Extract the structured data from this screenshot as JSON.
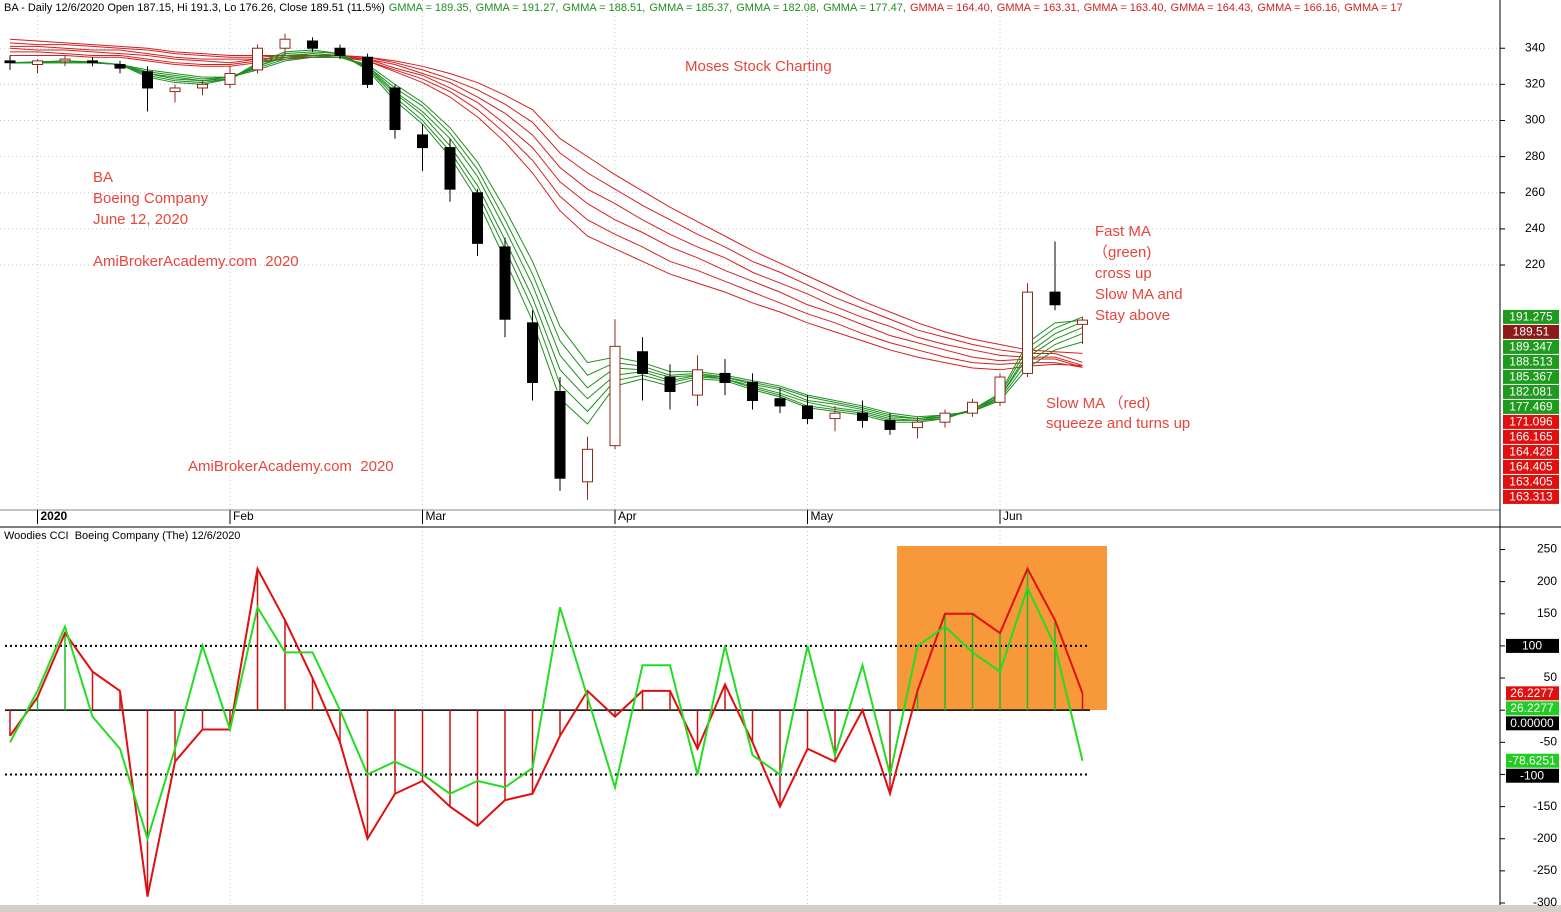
{
  "chart_data": [
    {
      "type": "candlestick",
      "header": "BA - Daily 12/6/2020 Open 187.15, Hi 191.3, Lo 176.26, Close 189.51 (11.5%)",
      "categories": [
        null,
        "2020",
        null,
        null,
        null,
        null,
        null,
        null,
        "Feb",
        null,
        null,
        null,
        null,
        null,
        null,
        "Mar",
        null,
        null,
        null,
        null,
        null,
        null,
        "Apr",
        null,
        null,
        null,
        null,
        null,
        null,
        "May",
        null,
        null,
        null,
        null,
        null,
        null,
        "Jun",
        null,
        null,
        null
      ],
      "open": [
        333,
        331,
        333,
        333,
        331,
        327,
        316,
        318,
        320,
        328,
        340,
        344,
        340,
        335,
        318,
        292,
        285,
        260,
        230,
        188,
        150,
        100,
        120,
        172,
        158,
        148,
        160,
        155,
        146,
        142,
        135,
        138,
        134,
        130,
        133,
        138,
        144,
        160,
        205,
        187.15
      ],
      "high": [
        336,
        334,
        336,
        335,
        333,
        330,
        320,
        322,
        330,
        342,
        348,
        346,
        342,
        337,
        320,
        298,
        290,
        262,
        235,
        195,
        158,
        125,
        190,
        180,
        165,
        170,
        168,
        160,
        152,
        148,
        142,
        145,
        138,
        136,
        140,
        146,
        160,
        210,
        233,
        191.3
      ],
      "low": [
        328,
        326,
        330,
        330,
        326,
        305,
        310,
        314,
        318,
        326,
        336,
        338,
        334,
        318,
        290,
        272,
        255,
        225,
        180,
        145,
        95,
        90,
        118,
        145,
        140,
        142,
        148,
        140,
        138,
        132,
        128,
        130,
        126,
        124,
        130,
        136,
        142,
        158,
        195,
        176.26
      ],
      "close": [
        332,
        333,
        334,
        332,
        329,
        318,
        318,
        320,
        326,
        340,
        345,
        340,
        336,
        320,
        295,
        285,
        262,
        232,
        190,
        155,
        102,
        118,
        175,
        160,
        150,
        162,
        155,
        145,
        142,
        135,
        138,
        134,
        129,
        133,
        138,
        144,
        158,
        205,
        198,
        189.51
      ],
      "up_color": "#ffffff",
      "up_edge": "#8b2b1e",
      "down_color": "#000000",
      "series": [
        {
          "legend": "GMMA = 189.35,",
          "color": "#1f8f1f",
          "values": [
            332,
            332.5,
            333,
            332.5,
            331,
            324,
            321,
            320,
            323,
            332,
            338,
            339,
            337,
            328,
            311,
            298,
            280,
            256,
            223,
            189,
            146,
            132,
            153,
            157,
            153,
            157,
            156,
            151,
            147,
            141,
            139,
            137,
            133,
            133,
            135,
            140,
            149,
            177,
            188,
            189.35
          ]
        },
        {
          "legend": "GMMA = 191.27,",
          "color": "#1f8f1f",
          "values": [
            332,
            332,
            333,
            332,
            331,
            325,
            322,
            321,
            323,
            331,
            337,
            338,
            337,
            329,
            313,
            300,
            283,
            260,
            229,
            196,
            154,
            139,
            156,
            159,
            155,
            158,
            157,
            152,
            148,
            142,
            140,
            138,
            134,
            134,
            135,
            140,
            148,
            174,
            185,
            191.27
          ]
        },
        {
          "legend": "GMMA = 188.51,",
          "color": "#1f8f1f",
          "values": [
            332,
            332,
            333,
            332,
            331,
            326,
            323,
            322,
            323,
            330,
            336,
            337,
            336,
            329,
            315,
            303,
            286,
            264,
            234,
            202,
            162,
            146,
            159,
            161,
            156,
            159,
            157,
            153,
            149,
            144,
            141,
            139,
            135,
            134,
            136,
            140,
            147,
            171,
            182,
            188.51
          ]
        },
        {
          "legend": "GMMA = 185.37,",
          "color": "#1f8f1f",
          "values": [
            332,
            332,
            332,
            332,
            331,
            326,
            324,
            322,
            324,
            330,
            335,
            337,
            336,
            330,
            316,
            305,
            290,
            269,
            240,
            209,
            170,
            152,
            163,
            162,
            158,
            159,
            158,
            154,
            151,
            145,
            143,
            140,
            136,
            135,
            136,
            139,
            147,
            169,
            179,
            185.37
          ]
        },
        {
          "legend": "GMMA = 182.08,",
          "color": "#1f8f1f",
          "values": [
            332,
            332,
            332,
            332,
            331,
            327,
            325,
            323,
            324,
            329,
            334,
            336,
            335,
            330,
            318,
            308,
            293,
            273,
            245,
            215,
            178,
            159,
            166,
            164,
            159,
            160,
            158,
            155,
            152,
            147,
            144,
            141,
            137,
            135,
            137,
            139,
            146,
            166,
            176,
            182.08
          ]
        },
        {
          "legend": "GMMA = 177.47,",
          "color": "#1f8f1f",
          "values": [
            332,
            332,
            332,
            332,
            331,
            328,
            326,
            324,
            324,
            328,
            333,
            335,
            335,
            331,
            320,
            310,
            296,
            277,
            251,
            222,
            186,
            166,
            169,
            166,
            161,
            161,
            159,
            156,
            153,
            148,
            145,
            142,
            138,
            136,
            137,
            139,
            145,
            163,
            173,
            177.47
          ]
        },
        {
          "legend": "GMMA = 164.40,",
          "color": "#d42020",
          "values": [
            336,
            336,
            336,
            335,
            335,
            333,
            331,
            330,
            330,
            332,
            334,
            335,
            335,
            333,
            327,
            321,
            313,
            302,
            288,
            271,
            250,
            236,
            229,
            222,
            215,
            210,
            205,
            199,
            194,
            188,
            183,
            178,
            173,
            169,
            166,
            163,
            162,
            164,
            165,
            164.4
          ]
        },
        {
          "legend": "GMMA = 163.31,",
          "color": "#d42020",
          "values": [
            338,
            338,
            337,
            336,
            336,
            334,
            332,
            331,
            331,
            333,
            334,
            335,
            335,
            333,
            328,
            323,
            316,
            306,
            293,
            278,
            258,
            245,
            237,
            230,
            222,
            217,
            211,
            205,
            199,
            193,
            188,
            182,
            177,
            173,
            169,
            166,
            165,
            166,
            166,
            163.31
          ]
        },
        {
          "legend": "GMMA = 163.40,",
          "color": "#d42020",
          "values": [
            340,
            339,
            339,
            338,
            337,
            336,
            334,
            333,
            332,
            334,
            335,
            335,
            335,
            334,
            329,
            325,
            318,
            310,
            298,
            285,
            266,
            254,
            245,
            238,
            230,
            224,
            217,
            211,
            205,
            198,
            193,
            187,
            181,
            177,
            173,
            169,
            167,
            168,
            168,
            163.4
          ]
        },
        {
          "legend": "GMMA = 164.43,",
          "color": "#d42020",
          "values": [
            341,
            341,
            340,
            339,
            339,
            337,
            335,
            334,
            334,
            334,
            335,
            336,
            336,
            334,
            331,
            326,
            321,
            313,
            304,
            292,
            274,
            262,
            254,
            245,
            237,
            230,
            224,
            216,
            210,
            204,
            197,
            191,
            186,
            180,
            176,
            173,
            170,
            169,
            169,
            164.43
          ]
        },
        {
          "legend": "GMMA = 166.16,",
          "color": "#d42020",
          "values": [
            343,
            342,
            342,
            341,
            340,
            339,
            337,
            336,
            335,
            335,
            336,
            336,
            336,
            335,
            332,
            328,
            323,
            317,
            309,
            299,
            282,
            271,
            262,
            253,
            245,
            237,
            230,
            222,
            216,
            209,
            202,
            196,
            190,
            184,
            180,
            176,
            173,
            171,
            171,
            166.16
          ]
        },
        {
          "legend": "GMMA = 17",
          "color": "#d42020",
          "values": [
            345,
            344,
            343,
            342,
            341,
            340,
            338,
            337,
            336,
            336,
            336,
            336,
            336,
            335,
            333,
            330,
            326,
            321,
            314,
            306,
            290,
            280,
            270,
            261,
            252,
            244,
            236,
            228,
            221,
            214,
            207,
            200,
            194,
            188,
            183,
            179,
            176,
            173,
            172,
            171.096
          ]
        }
      ],
      "ylim": [
        84.4,
        366.7
      ],
      "yticks": [
        220,
        240,
        260,
        280,
        300,
        320,
        340
      ],
      "grid": true,
      "markers": [
        {
          "value": 191.275,
          "color": "#1e9a1e"
        },
        {
          "value": 189.51,
          "color": "#8b1a1a"
        },
        {
          "value": 189.347,
          "color": "#1e9a1e"
        },
        {
          "value": 188.513,
          "color": "#1e9a1e"
        },
        {
          "value": 185.367,
          "color": "#1e9a1e"
        },
        {
          "value": 182.081,
          "color": "#1e9a1e"
        },
        {
          "value": 177.469,
          "color": "#1e9a1e"
        },
        {
          "value": 171.096,
          "color": "#e01010"
        },
        {
          "value": 166.165,
          "color": "#e01010"
        },
        {
          "value": 164.428,
          "color": "#e01010"
        },
        {
          "value": 164.405,
          "color": "#e01010"
        },
        {
          "value": 163.405,
          "color": "#e01010"
        },
        {
          "value": 163.313,
          "color": "#e01010"
        }
      ],
      "annotations": {
        "watermark": "Moses Stock Charting",
        "symbol": "BA",
        "company": "Boeing Company",
        "date": "June 12, 2020",
        "site": "AmiBrokerAcademy.com  2020",
        "site2": "AmiBrokerAcademy.com  2020",
        "fast_note": [
          "Fast MA",
          "（green)",
          "cross up",
          "Slow MA and",
          "Stay above"
        ],
        "slow_note": [
          "Slow MA （red)",
          "squeeze and turns up"
        ]
      }
    },
    {
      "type": "line",
      "title": "Woodies CCI  Boeing Company (The) 12/6/2020",
      "series": [
        {
          "color": "#e01010",
          "values": [
            -40,
            20,
            120,
            60,
            30,
            -290,
            -80,
            -30,
            -30,
            220,
            140,
            50,
            -50,
            -200,
            -130,
            -110,
            -150,
            -180,
            -140,
            -130,
            -40,
            30,
            -10,
            30,
            30,
            -60,
            40,
            -50,
            -150,
            -60,
            -80,
            0,
            -130,
            30,
            150,
            150,
            120,
            220,
            140,
            26.2277
          ]
        },
        {
          "color": "#22dd22",
          "values": [
            -50,
            30,
            130,
            -10,
            -60,
            -200,
            -60,
            100,
            -30,
            160,
            90,
            90,
            0,
            -100,
            -80,
            -100,
            -130,
            -110,
            -120,
            -90,
            160,
            20,
            -120,
            70,
            70,
            -100,
            100,
            -70,
            -100,
            100,
            -70,
            70,
            -100,
            100,
            130,
            90,
            60,
            190,
            100,
            -78.6251
          ]
        }
      ],
      "bar_colors": [
        "#cc1111",
        "#22bb22",
        "#22bb22",
        "#cc1111",
        "#cc1111",
        "#cc1111",
        "#cc1111",
        "#cc1111",
        "#cc1111",
        "#cc1111",
        "#cc1111",
        "#cc1111",
        "#cc1111",
        "#cc1111",
        "#cc1111",
        "#cc1111",
        "#cc1111",
        "#cc1111",
        "#cc1111",
        "#cc1111",
        "#cc1111",
        "#cc1111",
        "#cc1111",
        "#cc1111",
        "#cc1111",
        "#cc1111",
        "#cc1111",
        "#cc1111",
        "#cc1111",
        "#cc1111",
        "#cc1111",
        "#cc1111",
        "#cc1111",
        "#22bb22",
        "#22bb22",
        "#22bb22",
        "#22bb22",
        "#22bb22",
        "#22bb22",
        "#cc1111"
      ],
      "ylim": [
        -314,
        285
      ],
      "yticks": [
        250,
        200,
        150,
        100,
        50,
        0,
        -50,
        -100,
        -150,
        -200,
        -250,
        -300
      ],
      "grid": true,
      "reference_lines": [
        100,
        -100
      ],
      "highlight_color": "#f7993a",
      "markers": [
        {
          "value": 100,
          "label": "100",
          "color": "#000000"
        },
        {
          "value": 26.2277,
          "color": "#e01010"
        },
        {
          "value": 26.2277,
          "color": "#22cc22"
        },
        {
          "value": 0,
          "label": "0.00000",
          "color": "#000000"
        },
        {
          "value": -78.6251,
          "color": "#22cc22"
        },
        {
          "value": -100,
          "color": "#000000"
        }
      ]
    }
  ]
}
